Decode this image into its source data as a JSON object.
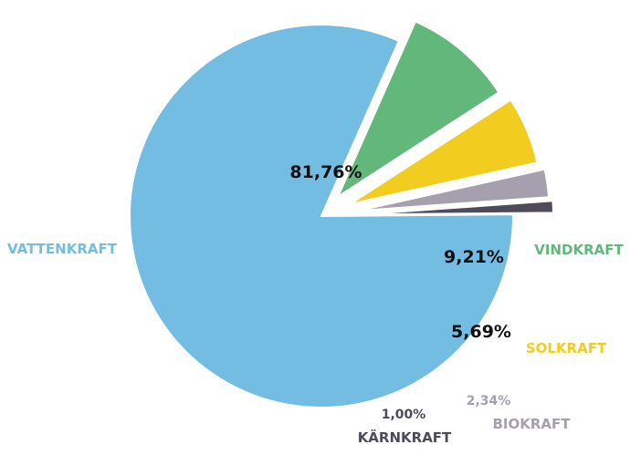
{
  "chart_data": {
    "type": "pie",
    "categories": [
      "VATTENKRAFT",
      "VINDKRAFT",
      "SOLKRAFT",
      "BIOKRAFT",
      "KÄRNKRAFT"
    ],
    "values": [
      81.76,
      9.21,
      5.69,
      2.34,
      1.0
    ],
    "value_labels": [
      "81,76%",
      "9,21%",
      "5,69%",
      "2,34%",
      "1,00%"
    ],
    "colors": [
      "#73bde3",
      "#62b77b",
      "#f2cd1f",
      "#a59fae",
      "#4e4a5a"
    ],
    "exploded": [
      false,
      true,
      true,
      true,
      true
    ],
    "title": "",
    "legend": "none"
  }
}
